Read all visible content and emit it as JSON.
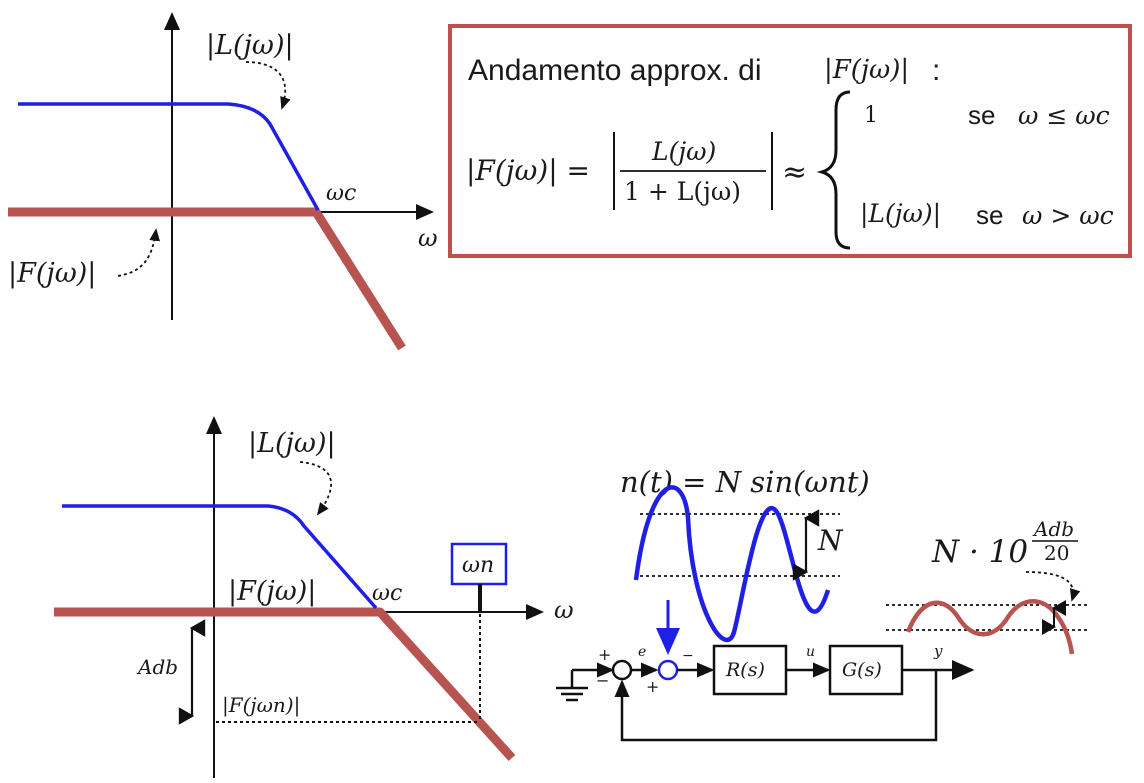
{
  "colors": {
    "loop_gain": "#1f1fe6",
    "closed_loop": "#b85450",
    "box_border": "#c0504d",
    "axis": "#111111"
  },
  "top_plot": {
    "L_label": "|L(jω)|",
    "F_label": "|F(jω)|",
    "wc_label": "ωc",
    "w_label": "ω"
  },
  "formula_box": {
    "title_text": "Andamento approx. di",
    "title_math": "|F(jω)|",
    "title_colon": ":",
    "lhs": "|F(jω)| =",
    "numerator": "L(jω)",
    "denominator": "1 + L(jω)",
    "approx": "≈",
    "case1_value": "1",
    "case1_se": "se",
    "case1_cond": "ω ≤ ωc",
    "case2_value": "|L(jω)|",
    "case2_se": "se",
    "case2_cond": "ω > ωc"
  },
  "bottom_plot": {
    "L_label": "|L(jω)|",
    "F_label": "|F(jω)|",
    "wc_label": "ωc",
    "w_label": "ω",
    "wn_label": "ωn",
    "adb_label": "Adb",
    "Fwn_label": "|F(jωn)|"
  },
  "block_diagram": {
    "noise_eq": "n(t) = N sin(ωnt)",
    "N_label": "N",
    "output_amp": "N · 10",
    "output_exp_num": "Adb",
    "output_exp_den": "20",
    "R_block": "R(s)",
    "G_block": "G(s)",
    "e_label": "e",
    "u_label": "u",
    "y_label": "y",
    "plus1": "+",
    "minus1": "−",
    "minus2": "−",
    "plus2": "+"
  }
}
